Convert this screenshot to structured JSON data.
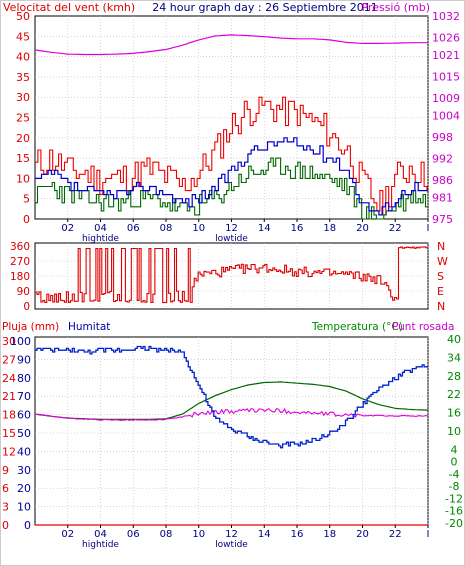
{
  "colors": {
    "wind_avg": "#0000cc",
    "wind_gust": "#ee0000",
    "wind_dir": "#dd0000",
    "pressure": "#dd00dd",
    "humidity": "#0022cc",
    "temperature": "#006600",
    "dewpoint": "#dd00dd",
    "rain": "#ee0000",
    "bearing": "#880000",
    "dark": "#990000",
    "title": "#000080",
    "rightaxis": "#cc00cc",
    "temp_axis": "#008800"
  },
  "header": {
    "wind_label": "Velocitat del vent (kmh)",
    "title": "24 hour graph day : 26 Septiembre 2011",
    "pressure_label": "Pressió (mb)"
  },
  "middle": {
    "compass": [
      "N",
      "W",
      "S",
      "E",
      "N"
    ]
  },
  "bottom_header": {
    "rain_label": "Pluja (mm)",
    "humidity_label": "Humitat",
    "temp_label": "Temperatura (°C)",
    "dew_label": "Punt rosada"
  },
  "x_axis": {
    "ticks": [
      "02",
      "04",
      "06",
      "08",
      "10",
      "12",
      "14",
      "16",
      "18",
      "20",
      "22",
      "I"
    ],
    "tide_labels": [
      {
        "at": "04",
        "text": "hightide"
      },
      {
        "at": "12",
        "text": "lowtide"
      }
    ]
  },
  "chart_data": [
    {
      "type": "line",
      "title": "24 hour graph day : 26 Septiembre 2011",
      "x_range": [
        0,
        24
      ],
      "y_left": {
        "label": "Velocitat del vent (kmh)",
        "range": [
          0,
          50
        ],
        "ticks": [
          0,
          5,
          10,
          15,
          20,
          25,
          30,
          35,
          40,
          45,
          50
        ]
      },
      "y_right": {
        "label": "Pressió (mb)",
        "range": [
          975,
          1032
        ],
        "ticks": [
          975,
          981,
          986,
          992,
          998,
          1004,
          1009,
          1015,
          1021,
          1026,
          1032
        ]
      },
      "series": [
        {
          "x": [
            0,
            1,
            2,
            3,
            4,
            5,
            6,
            7,
            8,
            9,
            10,
            11,
            12,
            13,
            14,
            15,
            16,
            17,
            18,
            19,
            20,
            21,
            22,
            23,
            24
          ],
          "values": [
            9,
            11,
            8,
            7,
            6,
            6,
            7,
            8,
            6,
            4,
            5,
            8,
            12,
            16,
            18,
            19,
            18,
            17,
            15,
            12,
            4,
            1,
            5,
            8,
            6
          ]
        },
        {
          "x": [
            0,
            1,
            2,
            3,
            4,
            5,
            6,
            7,
            8,
            9,
            10,
            11,
            12,
            13,
            14,
            15,
            16,
            17,
            18,
            19,
            20,
            21,
            22,
            23,
            24
          ],
          "values": [
            13,
            15,
            12,
            11,
            10,
            10,
            11,
            12,
            10,
            8,
            11,
            17,
            23,
            27,
            28,
            27,
            26,
            24,
            21,
            17,
            9,
            3,
            10,
            13,
            10
          ]
        },
        {
          "x": [
            0,
            1,
            2,
            3,
            4,
            5,
            6,
            7,
            8,
            9,
            10,
            11,
            12,
            13,
            14,
            15,
            16,
            17,
            18,
            19,
            20,
            21,
            22,
            23,
            24
          ],
          "values": [
            6,
            8,
            6,
            5,
            4,
            4,
            5,
            5,
            4,
            2,
            3,
            5,
            8,
            11,
            12,
            13,
            12,
            11,
            10,
            8,
            2,
            0,
            3,
            6,
            4
          ]
        },
        {
          "x": [
            0,
            1,
            2,
            3,
            4,
            5,
            6,
            7,
            8,
            9,
            10,
            11,
            12,
            13,
            14,
            15,
            16,
            17,
            18,
            19,
            20,
            21,
            22,
            23,
            24
          ],
          "values": [
            1022.5,
            1021.8,
            1021.3,
            1021.2,
            1021.2,
            1021.3,
            1021.5,
            1022.0,
            1022.6,
            1023.8,
            1025.3,
            1026.4,
            1026.7,
            1026.5,
            1026.2,
            1025.8,
            1025.6,
            1025.6,
            1025.3,
            1024.6,
            1024.3,
            1024.3,
            1024.4,
            1024.5,
            1024.5
          ]
        }
      ]
    },
    {
      "type": "line",
      "x_range": [
        0,
        24
      ],
      "y_left": {
        "range": [
          0,
          360
        ],
        "ticks": [
          0,
          90,
          180,
          270,
          360
        ]
      },
      "y_right": {
        "ticks": [
          "N",
          "W",
          "S",
          "E",
          "N"
        ]
      },
      "series": [
        {
          "x": [
            0,
            1,
            2,
            3,
            4,
            5,
            6,
            7,
            8,
            9,
            10,
            11,
            12,
            13,
            14,
            15,
            16,
            17,
            18,
            19,
            20,
            21,
            22,
            23,
            24
          ],
          "values": [
            20,
            345,
            30,
            340,
            20,
            25,
            30,
            340,
            20,
            30,
            190,
            200,
            215,
            225,
            230,
            220,
            205,
            200,
            195,
            190,
            175,
            160,
            40,
            345,
            350
          ]
        }
      ]
    },
    {
      "type": "line",
      "x_range": [
        0,
        24
      ],
      "y_left_rain": {
        "label": "Pluja (mm)",
        "range": [
          0,
          30
        ],
        "ticks": [
          0,
          3,
          6,
          9,
          12,
          15,
          18,
          21,
          24,
          27,
          30
        ]
      },
      "y_left_humidity": {
        "label": "Humitat",
        "range": [
          0,
          100
        ],
        "ticks": [
          0,
          10,
          20,
          30,
          40,
          50,
          60,
          70,
          80,
          90,
          100
        ]
      },
      "y_right": {
        "label": "Temperatura (°C)",
        "range": [
          -20,
          40
        ],
        "ticks": [
          -20,
          -16,
          -12,
          -8,
          -4,
          0,
          4,
          10,
          16,
          22,
          28,
          34,
          40
        ]
      },
      "series": [
        {
          "x": [
            0,
            1,
            2,
            3,
            4,
            5,
            6,
            7,
            8,
            9,
            10,
            11,
            12,
            13,
            14,
            15,
            16,
            17,
            18,
            19,
            20,
            21,
            22,
            23,
            24
          ],
          "values": [
            96,
            95,
            95,
            94,
            95,
            95,
            96,
            96,
            95,
            94,
            75,
            58,
            52,
            48,
            45,
            43,
            44,
            46,
            50,
            56,
            66,
            74,
            80,
            85,
            86
          ]
        },
        {
          "x": [
            0,
            1,
            2,
            3,
            4,
            5,
            6,
            7,
            8,
            9,
            10,
            11,
            12,
            13,
            14,
            15,
            16,
            17,
            18,
            19,
            20,
            21,
            22,
            23,
            24
          ],
          "values": [
            15.5,
            14.8,
            14.2,
            14.0,
            13.8,
            13.8,
            13.8,
            13.8,
            14.0,
            15.5,
            19.0,
            21.5,
            23.5,
            25.0,
            25.8,
            26.0,
            25.6,
            25.2,
            24.5,
            23.0,
            20.5,
            18.6,
            17.4,
            17.0,
            16.8
          ]
        },
        {
          "x": [
            0,
            1,
            2,
            3,
            4,
            5,
            6,
            7,
            8,
            9,
            10,
            11,
            12,
            13,
            14,
            15,
            16,
            17,
            18,
            19,
            20,
            21,
            22,
            23,
            24
          ],
          "values": [
            15.5,
            14.8,
            14.2,
            13.9,
            13.6,
            13.6,
            13.6,
            13.6,
            13.8,
            14.6,
            15.8,
            16.2,
            16.4,
            16.6,
            16.8,
            16.6,
            16.2,
            15.8,
            15.5,
            15.2,
            15.0,
            15.0,
            14.9,
            14.9,
            14.9
          ]
        },
        {
          "x": [
            0,
            24
          ],
          "values": [
            0,
            0
          ]
        }
      ]
    }
  ]
}
